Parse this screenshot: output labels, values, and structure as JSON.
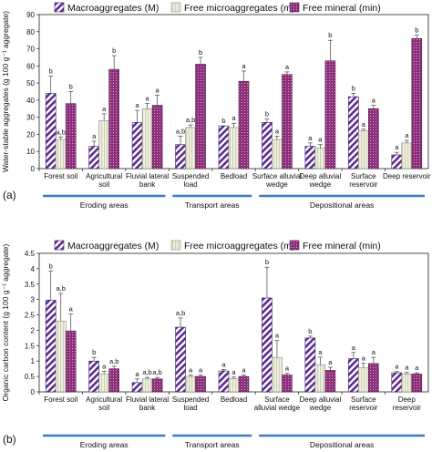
{
  "legend": [
    {
      "label": "Macroaggregates (M)",
      "pattern": "diag",
      "color": "#5b2d8e"
    },
    {
      "label": "Free microaggregates (m)",
      "pattern": "light",
      "color": "#d8d8c0"
    },
    {
      "label": "Free mineral (min)",
      "pattern": "dots",
      "color": "#8b2f7a"
    }
  ],
  "categories": [
    "Forest soil",
    "Agricultural soil",
    "Fluvial lateral bank",
    "Suspended load",
    "Bedload",
    "Surface alluvial wedge",
    "Deep alluvial wedge",
    "Surface reservoir",
    "Deep reservoir"
  ],
  "groups": [
    {
      "label": "Eroding areas",
      "from": 0,
      "to": 2
    },
    {
      "label": "Transport areas",
      "from": 3,
      "to": 4
    },
    {
      "label": "Depositional areas",
      "from": 5,
      "to": 8
    }
  ],
  "chart_data": [
    {
      "type": "bar",
      "panel_label": "(a)",
      "ylabel": "Water-stable aggregates (g 100 g⁻¹ aggregate)",
      "ylim": [
        0,
        90
      ],
      "yticks": [
        0,
        10,
        20,
        30,
        40,
        50,
        60,
        70,
        80,
        90
      ],
      "category_labels": [
        [
          "Forest soil"
        ],
        [
          "Agricultural",
          "soil"
        ],
        [
          "Fluvial lateral",
          "bank"
        ],
        [
          "Suspended",
          "load"
        ],
        [
          "Bedload"
        ],
        [
          "Surface alluvial",
          "wedge"
        ],
        [
          "Deep alluvial",
          "wedge"
        ],
        [
          "Surface",
          "reservoir"
        ],
        [
          "Deep reservoir"
        ]
      ],
      "series": [
        {
          "name": "Macroaggregates (M)",
          "values": [
            44,
            13,
            27,
            14,
            25,
            27,
            13,
            42,
            8
          ],
          "errors": [
            10,
            3,
            7,
            5,
            0,
            2,
            2,
            2,
            1.5
          ],
          "letters": [
            "b",
            "a",
            "a",
            "a,b",
            "b",
            "b",
            "a",
            "b",
            "a"
          ]
        },
        {
          "name": "Free microaggregates (m)",
          "values": [
            17,
            28,
            35,
            24,
            24,
            17,
            12,
            22,
            15
          ],
          "errors": [
            1.5,
            4,
            3,
            1.5,
            2.5,
            2,
            2,
            1,
            1.5
          ],
          "letters": [
            "a,b",
            "a",
            "a",
            "a,b",
            "a",
            "a",
            "a",
            "a",
            "a"
          ]
        },
        {
          "name": "Free mineral (min)",
          "values": [
            38,
            58,
            37,
            61,
            51,
            55,
            63,
            35,
            76
          ],
          "errors": [
            7,
            8,
            6,
            4,
            6,
            1.5,
            12,
            2,
            2
          ],
          "letters": [
            "b",
            "b",
            "a",
            "b",
            "a",
            "a",
            "b",
            "a",
            "b"
          ]
        }
      ]
    },
    {
      "type": "bar",
      "panel_label": "(b)",
      "ylabel": "Organic carbon content (g 100 g⁻¹ aggregate)",
      "ylim": [
        0,
        4.5
      ],
      "yticks": [
        0,
        0.5,
        1,
        1.5,
        2,
        2.5,
        3,
        3.5,
        4,
        4.5
      ],
      "category_labels": [
        [
          "Forest soil"
        ],
        [
          "Agricultural",
          "soil"
        ],
        [
          "Fluvial lateral",
          "bank"
        ],
        [
          "Suspended",
          "load"
        ],
        [
          "Bedload"
        ],
        [
          "Surface",
          "alluvial wedge"
        ],
        [
          "Deep alluvial",
          "wedge"
        ],
        [
          "Surface",
          "reservoir"
        ],
        [
          "Deep",
          "reservoir"
        ]
      ],
      "series": [
        {
          "name": "Macroaggregates (M)",
          "values": [
            2.98,
            1.0,
            0.3,
            2.1,
            0.68,
            3.05,
            1.75,
            1.08,
            0.62
          ],
          "errors": [
            0.95,
            0.12,
            0.12,
            0.3,
            0.05,
            1.0,
            0.06,
            0.2,
            0.04
          ],
          "letters": [
            "b",
            "b",
            "a",
            "a,b",
            "a",
            "b",
            "b",
            "a",
            "a"
          ]
        },
        {
          "name": "Free microaggregates (m)",
          "values": [
            2.3,
            0.57,
            0.42,
            0.5,
            0.43,
            1.12,
            0.88,
            0.78,
            0.58
          ],
          "errors": [
            0.9,
            0.1,
            0.05,
            0.05,
            0.05,
            0.55,
            0.25,
            0.15,
            0.05
          ],
          "letters": [
            "a,b",
            "a",
            "a,b",
            "a",
            "a",
            "a",
            "a",
            "a",
            "a"
          ]
        },
        {
          "name": "Free mineral (min)",
          "values": [
            1.98,
            0.75,
            0.42,
            0.5,
            0.5,
            0.55,
            0.7,
            0.92,
            0.58
          ],
          "errors": [
            0.55,
            0.08,
            0.05,
            0.05,
            0.05,
            0.05,
            0.1,
            0.2,
            0.04
          ],
          "letters": [
            "a",
            "a,b",
            "a,b",
            "a",
            "a",
            "a",
            "a",
            "a",
            "a"
          ]
        }
      ]
    }
  ]
}
